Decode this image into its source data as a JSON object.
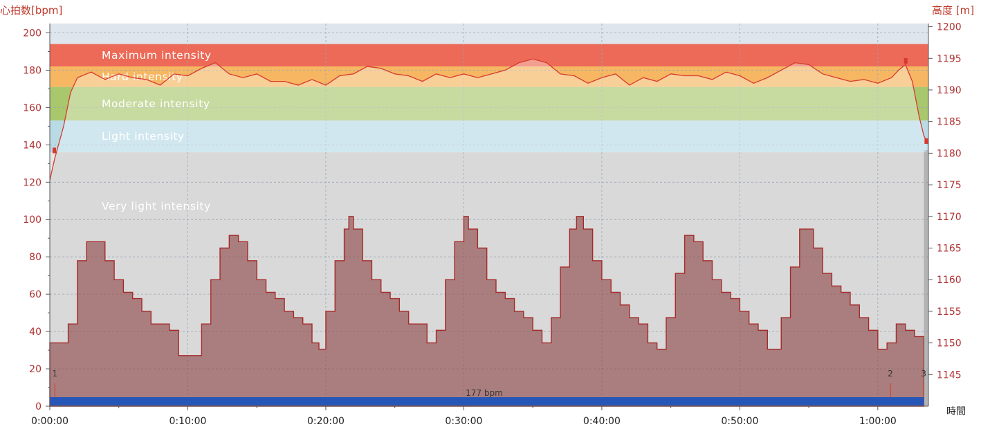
{
  "chart_data": {
    "type": "line",
    "left_axis_title": "心拍数[bpm]",
    "right_axis_title": "高度 [m]",
    "x_axis_title": "時間",
    "left_axis": {
      "min": 0,
      "max": 205,
      "ticks": [
        0,
        20,
        40,
        60,
        80,
        100,
        120,
        140,
        160,
        180,
        200
      ]
    },
    "right_axis": {
      "min": 1140,
      "max": 1200.5,
      "ticks": [
        1145,
        1150,
        1155,
        1160,
        1165,
        1170,
        1175,
        1180,
        1185,
        1190,
        1195,
        1200
      ]
    },
    "x_axis": {
      "min_seconds": 0,
      "max_seconds": 3820,
      "tick_labels": [
        "0:00:00",
        "0:10:00",
        "0:20:00",
        "0:30:00",
        "0:40:00",
        "0:50:00",
        "1:00:00"
      ]
    },
    "zones": [
      {
        "label": "Maximum intensity",
        "from": 182,
        "to": 194,
        "color": "#ec6a57"
      },
      {
        "label": "Hard intensity",
        "from": 171,
        "to": 182,
        "color": "#f6b662"
      },
      {
        "label": "Moderate intensity",
        "from": 153,
        "to": 171,
        "color": "#a9c76d"
      },
      {
        "label": "Light intensity",
        "from": 136,
        "to": 153,
        "color": "#b9dbe6"
      },
      {
        "label": "Very light intensity",
        "from": 0,
        "to": 136,
        "color": "#d9d9d9"
      }
    ],
    "heart_rate_series": {
      "name": "心拍数",
      "color": "#d63a2f",
      "points": [
        [
          0,
          121
        ],
        [
          20,
          132
        ],
        [
          60,
          150
        ],
        [
          90,
          168
        ],
        [
          120,
          176
        ],
        [
          180,
          179
        ],
        [
          240,
          175
        ],
        [
          300,
          178
        ],
        [
          360,
          176
        ],
        [
          420,
          175
        ],
        [
          480,
          172
        ],
        [
          540,
          178
        ],
        [
          600,
          177
        ],
        [
          660,
          181
        ],
        [
          720,
          184
        ],
        [
          780,
          178
        ],
        [
          840,
          176
        ],
        [
          900,
          178
        ],
        [
          960,
          174
        ],
        [
          1020,
          174
        ],
        [
          1080,
          172
        ],
        [
          1140,
          175
        ],
        [
          1200,
          172
        ],
        [
          1260,
          177
        ],
        [
          1320,
          178
        ],
        [
          1380,
          182
        ],
        [
          1440,
          181
        ],
        [
          1500,
          178
        ],
        [
          1560,
          177
        ],
        [
          1620,
          174
        ],
        [
          1680,
          178
        ],
        [
          1740,
          176
        ],
        [
          1800,
          178
        ],
        [
          1860,
          176
        ],
        [
          1920,
          178
        ],
        [
          1980,
          180
        ],
        [
          2040,
          184
        ],
        [
          2100,
          186
        ],
        [
          2160,
          184
        ],
        [
          2220,
          178
        ],
        [
          2280,
          177
        ],
        [
          2340,
          173
        ],
        [
          2400,
          176
        ],
        [
          2460,
          178
        ],
        [
          2520,
          172
        ],
        [
          2580,
          176
        ],
        [
          2640,
          174
        ],
        [
          2700,
          178
        ],
        [
          2760,
          177
        ],
        [
          2820,
          177
        ],
        [
          2880,
          175
        ],
        [
          2940,
          179
        ],
        [
          3000,
          177
        ],
        [
          3060,
          173
        ],
        [
          3120,
          176
        ],
        [
          3180,
          180
        ],
        [
          3240,
          184
        ],
        [
          3300,
          183
        ],
        [
          3360,
          178
        ],
        [
          3420,
          176
        ],
        [
          3480,
          174
        ],
        [
          3540,
          175
        ],
        [
          3600,
          173
        ],
        [
          3660,
          176
        ],
        [
          3690,
          180
        ],
        [
          3720,
          183
        ],
        [
          3750,
          174
        ],
        [
          3780,
          155
        ],
        [
          3800,
          145
        ],
        [
          3812,
          142
        ]
      ]
    },
    "altitude_series": {
      "name": "高度",
      "color": "#a52a2a",
      "points": [
        [
          0,
          1150
        ],
        [
          40,
          1150
        ],
        [
          80,
          1153
        ],
        [
          120,
          1163
        ],
        [
          160,
          1166
        ],
        [
          200,
          1166
        ],
        [
          240,
          1163
        ],
        [
          280,
          1160
        ],
        [
          320,
          1158
        ],
        [
          360,
          1157
        ],
        [
          400,
          1155
        ],
        [
          440,
          1153
        ],
        [
          480,
          1153
        ],
        [
          520,
          1152
        ],
        [
          560,
          1148
        ],
        [
          620,
          1148
        ],
        [
          660,
          1153
        ],
        [
          700,
          1160
        ],
        [
          740,
          1165
        ],
        [
          780,
          1167
        ],
        [
          820,
          1166
        ],
        [
          860,
          1163
        ],
        [
          900,
          1160
        ],
        [
          940,
          1158
        ],
        [
          980,
          1157
        ],
        [
          1020,
          1155
        ],
        [
          1060,
          1154
        ],
        [
          1100,
          1153
        ],
        [
          1140,
          1150
        ],
        [
          1170,
          1149
        ],
        [
          1200,
          1155
        ],
        [
          1240,
          1163
        ],
        [
          1280,
          1168
        ],
        [
          1300,
          1170
        ],
        [
          1320,
          1168
        ],
        [
          1360,
          1163
        ],
        [
          1400,
          1160
        ],
        [
          1440,
          1158
        ],
        [
          1480,
          1157
        ],
        [
          1520,
          1155
        ],
        [
          1560,
          1153
        ],
        [
          1600,
          1153
        ],
        [
          1640,
          1150
        ],
        [
          1680,
          1152
        ],
        [
          1720,
          1160
        ],
        [
          1760,
          1166
        ],
        [
          1800,
          1170
        ],
        [
          1820,
          1168
        ],
        [
          1860,
          1165
        ],
        [
          1900,
          1160
        ],
        [
          1940,
          1158
        ],
        [
          1980,
          1157
        ],
        [
          2020,
          1155
        ],
        [
          2060,
          1154
        ],
        [
          2100,
          1152
        ],
        [
          2140,
          1150
        ],
        [
          2180,
          1154
        ],
        [
          2220,
          1162
        ],
        [
          2260,
          1168
        ],
        [
          2290,
          1170
        ],
        [
          2320,
          1168
        ],
        [
          2360,
          1163
        ],
        [
          2400,
          1160
        ],
        [
          2440,
          1158
        ],
        [
          2480,
          1156
        ],
        [
          2520,
          1154
        ],
        [
          2560,
          1153
        ],
        [
          2600,
          1150
        ],
        [
          2640,
          1149
        ],
        [
          2680,
          1154
        ],
        [
          2720,
          1161
        ],
        [
          2760,
          1167
        ],
        [
          2800,
          1166
        ],
        [
          2840,
          1163
        ],
        [
          2880,
          1160
        ],
        [
          2920,
          1158
        ],
        [
          2960,
          1157
        ],
        [
          3000,
          1155
        ],
        [
          3040,
          1153
        ],
        [
          3080,
          1152
        ],
        [
          3120,
          1149
        ],
        [
          3150,
          1149
        ],
        [
          3180,
          1154
        ],
        [
          3220,
          1162
        ],
        [
          3260,
          1168
        ],
        [
          3290,
          1168
        ],
        [
          3320,
          1165
        ],
        [
          3360,
          1161
        ],
        [
          3400,
          1159
        ],
        [
          3440,
          1158
        ],
        [
          3480,
          1156
        ],
        [
          3520,
          1154
        ],
        [
          3560,
          1152
        ],
        [
          3600,
          1149
        ],
        [
          3640,
          1150
        ],
        [
          3680,
          1153
        ],
        [
          3720,
          1152
        ],
        [
          3760,
          1151
        ],
        [
          3800,
          1151
        ]
      ]
    },
    "lap_markers": [
      {
        "label": "1",
        "time_seconds": 22
      },
      {
        "label": "2",
        "time_seconds": 3655
      },
      {
        "label": "3",
        "time_seconds": 3800
      }
    ],
    "average_bar": {
      "label": "177 bpm",
      "color": "#2656b8"
    }
  }
}
